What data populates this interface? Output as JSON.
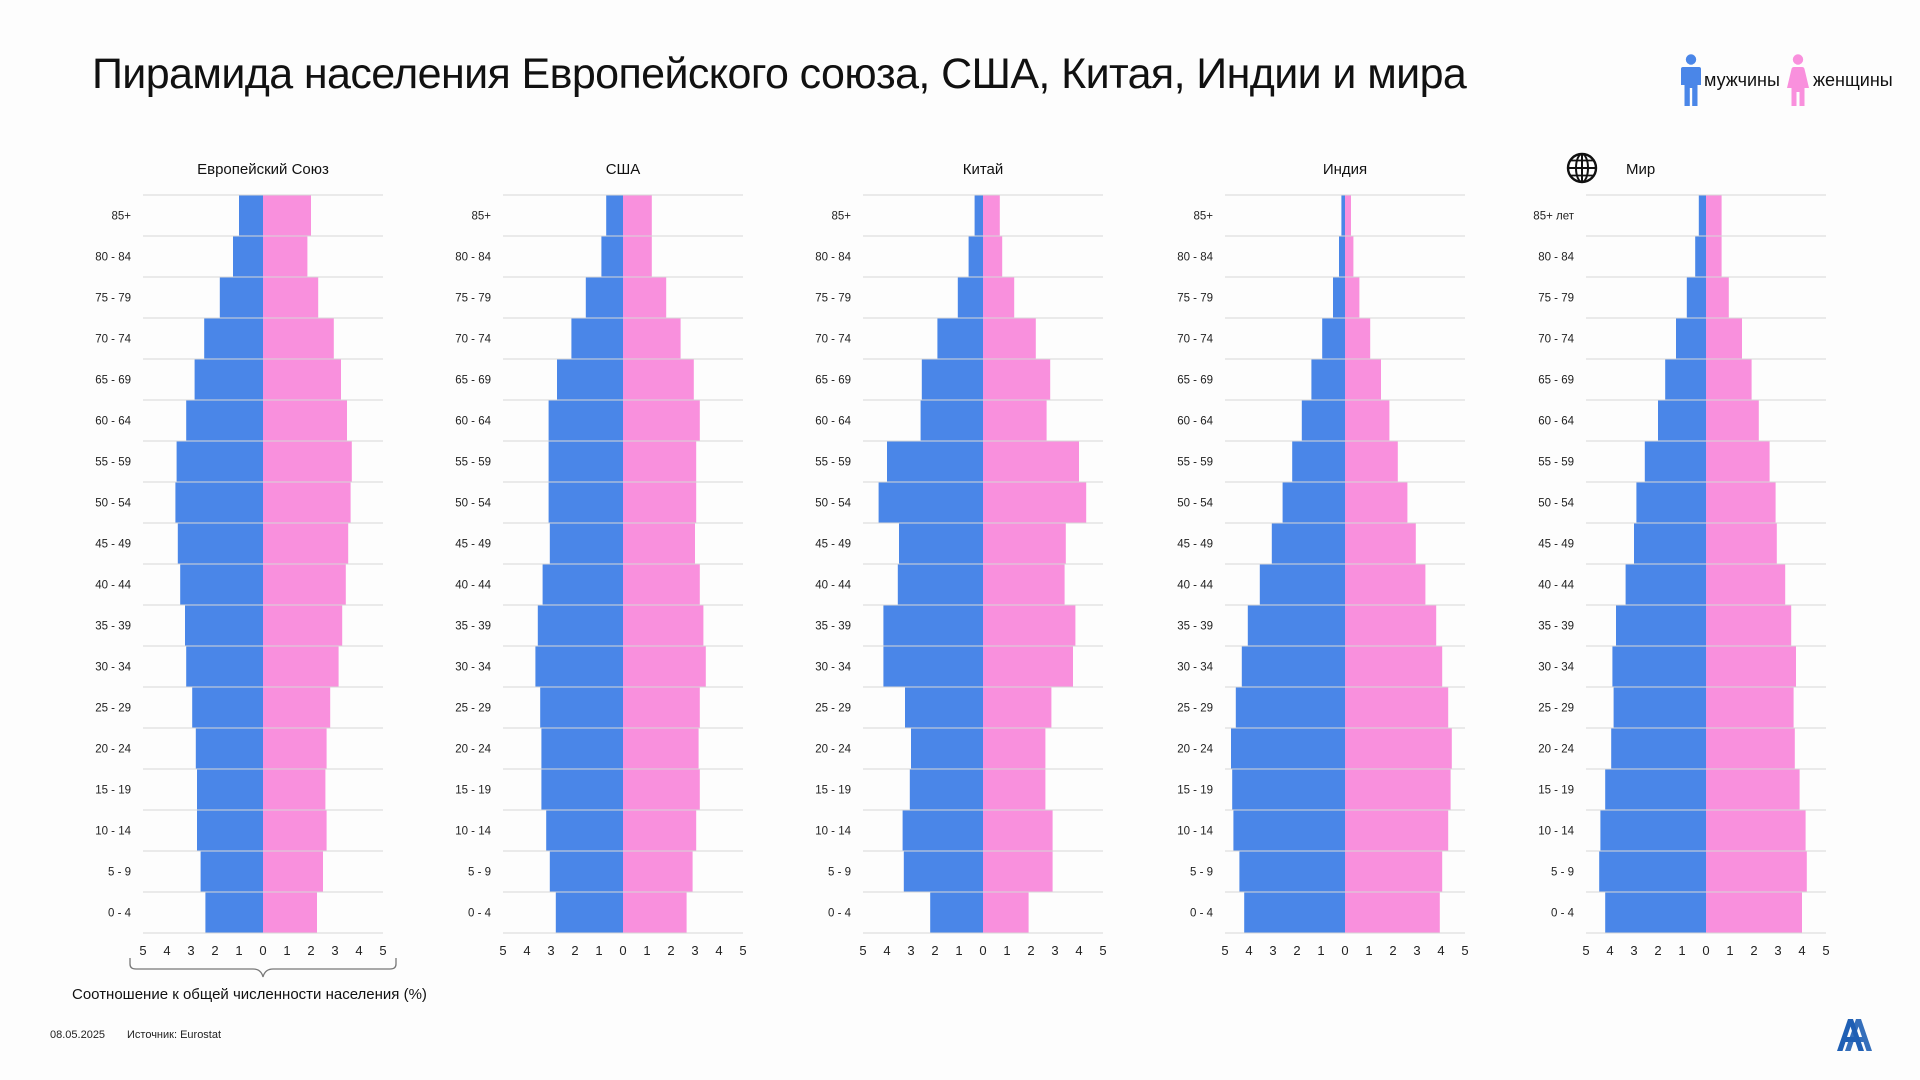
{
  "title": "Пирамида населения Европейского союза, США, Китая, Индии и мира",
  "legend": {
    "male_label": "мужчины",
    "female_label": "женщины",
    "male_icon": "male-person-icon",
    "female_icon": "female-person-icon"
  },
  "colors": {
    "male": "#4a86e8",
    "female": "#f990dd",
    "grid": "#d6d6d6"
  },
  "age_groups": [
    "85+",
    "80 - 84",
    "75 - 79",
    "70 - 74",
    "65 - 69",
    "60 - 64",
    "55 - 59",
    "50 - 54",
    "45 - 49",
    "40 - 44",
    "35 - 39",
    "30 - 34",
    "25 - 29",
    "20 - 24",
    "15 - 19",
    "10 - 14",
    "5 - 9",
    "0 - 4"
  ],
  "axis_ticks": [
    "5",
    "4",
    "3",
    "2",
    "1",
    "0",
    "1",
    "2",
    "3",
    "4",
    "5"
  ],
  "axis_caption": "Соотношение к общей численности населения (%)",
  "footer": {
    "date": "08.05.2025",
    "source": "Источник: Eurostat"
  },
  "chart_data": [
    {
      "type": "bar",
      "title": "Европейский Союз",
      "categories": [
        "85+",
        "80 - 84",
        "75 - 79",
        "70 - 74",
        "65 - 69",
        "60 - 64",
        "55 - 59",
        "50 - 54",
        "45 - 49",
        "40 - 44",
        "35 - 39",
        "30 - 34",
        "25 - 29",
        "20 - 24",
        "15 - 19",
        "10 - 14",
        "5 - 9",
        "0 - 4"
      ],
      "series": [
        {
          "name": "мужчины",
          "values": [
            1.0,
            1.25,
            1.8,
            2.45,
            2.85,
            3.2,
            3.6,
            3.65,
            3.55,
            3.45,
            3.25,
            3.2,
            2.95,
            2.8,
            2.75,
            2.75,
            2.6,
            2.4
          ]
        },
        {
          "name": "женщины",
          "values": [
            2.0,
            1.85,
            2.3,
            2.95,
            3.25,
            3.5,
            3.7,
            3.65,
            3.55,
            3.45,
            3.3,
            3.15,
            2.8,
            2.65,
            2.6,
            2.65,
            2.5,
            2.25
          ]
        }
      ],
      "xlim": [
        -5,
        5
      ]
    },
    {
      "type": "bar",
      "title": "США",
      "categories": [
        "85+",
        "80 - 84",
        "75 - 79",
        "70 - 74",
        "65 - 69",
        "60 - 64",
        "55 - 59",
        "50 - 54",
        "45 - 49",
        "40 - 44",
        "35 - 39",
        "30 - 34",
        "25 - 29",
        "20 - 24",
        "15 - 19",
        "10 - 14",
        "5 - 9",
        "0 - 4"
      ],
      "series": [
        {
          "name": "мужчины",
          "values": [
            0.7,
            0.9,
            1.55,
            2.15,
            2.75,
            3.1,
            3.1,
            3.1,
            3.05,
            3.35,
            3.55,
            3.65,
            3.45,
            3.4,
            3.4,
            3.2,
            3.05,
            2.8
          ]
        },
        {
          "name": "женщины",
          "values": [
            1.2,
            1.2,
            1.8,
            2.4,
            2.95,
            3.2,
            3.05,
            3.05,
            3.0,
            3.2,
            3.35,
            3.45,
            3.2,
            3.15,
            3.2,
            3.05,
            2.9,
            2.65
          ]
        }
      ],
      "xlim": [
        -5,
        5
      ]
    },
    {
      "type": "bar",
      "title": "Китай",
      "categories": [
        "85+",
        "80 - 84",
        "75 - 79",
        "70 - 74",
        "65 - 69",
        "60 - 64",
        "55 - 59",
        "50 - 54",
        "45 - 49",
        "40 - 44",
        "35 - 39",
        "30 - 34",
        "25 - 29",
        "20 - 24",
        "15 - 19",
        "10 - 14",
        "5 - 9",
        "0 - 4"
      ],
      "series": [
        {
          "name": "мужчины",
          "values": [
            0.35,
            0.6,
            1.05,
            1.9,
            2.55,
            2.6,
            4.0,
            4.35,
            3.5,
            3.55,
            4.15,
            4.15,
            3.25,
            3.0,
            3.05,
            3.35,
            3.3,
            2.2
          ]
        },
        {
          "name": "женщины",
          "values": [
            0.7,
            0.8,
            1.3,
            2.2,
            2.8,
            2.65,
            4.0,
            4.3,
            3.45,
            3.4,
            3.85,
            3.75,
            2.85,
            2.6,
            2.6,
            2.9,
            2.9,
            1.9
          ]
        }
      ],
      "xlim": [
        -5,
        5
      ]
    },
    {
      "type": "bar",
      "title": "Индия",
      "categories": [
        "85+",
        "80 - 84",
        "75 - 79",
        "70 - 74",
        "65 - 69",
        "60 - 64",
        "55 - 59",
        "50 - 54",
        "45 - 49",
        "40 - 44",
        "35 - 39",
        "30 - 34",
        "25 - 29",
        "20 - 24",
        "15 - 19",
        "10 - 14",
        "5 - 9",
        "0 - 4"
      ],
      "series": [
        {
          "name": "мужчины",
          "values": [
            0.15,
            0.25,
            0.5,
            0.95,
            1.4,
            1.8,
            2.2,
            2.6,
            3.05,
            3.55,
            4.05,
            4.3,
            4.55,
            4.75,
            4.7,
            4.65,
            4.4,
            4.2
          ]
        },
        {
          "name": "женщины",
          "values": [
            0.25,
            0.35,
            0.6,
            1.05,
            1.5,
            1.85,
            2.2,
            2.6,
            2.95,
            3.35,
            3.8,
            4.05,
            4.3,
            4.45,
            4.4,
            4.3,
            4.05,
            3.95
          ]
        }
      ],
      "xlim": [
        -5,
        5
      ]
    },
    {
      "type": "bar",
      "title": "Мир",
      "title_icon": "globe-icon",
      "categories": [
        "85+ лет",
        "80 - 84",
        "75 - 79",
        "70 - 74",
        "65 - 69",
        "60 - 64",
        "55 - 59",
        "50 - 54",
        "45 - 49",
        "40 - 44",
        "35 - 39",
        "30 - 34",
        "25 - 29",
        "20 - 24",
        "15 - 19",
        "10 - 14",
        "5 - 9",
        "0 - 4"
      ],
      "series": [
        {
          "name": "мужчины",
          "values": [
            0.3,
            0.45,
            0.8,
            1.25,
            1.7,
            2.0,
            2.55,
            2.9,
            3.0,
            3.35,
            3.75,
            3.9,
            3.85,
            3.95,
            4.2,
            4.4,
            4.45,
            4.2
          ]
        },
        {
          "name": "женщины",
          "values": [
            0.65,
            0.65,
            0.95,
            1.5,
            1.9,
            2.2,
            2.65,
            2.9,
            2.95,
            3.3,
            3.55,
            3.75,
            3.65,
            3.7,
            3.9,
            4.15,
            4.2,
            4.0
          ]
        }
      ],
      "xlim": [
        -5,
        5
      ]
    }
  ]
}
